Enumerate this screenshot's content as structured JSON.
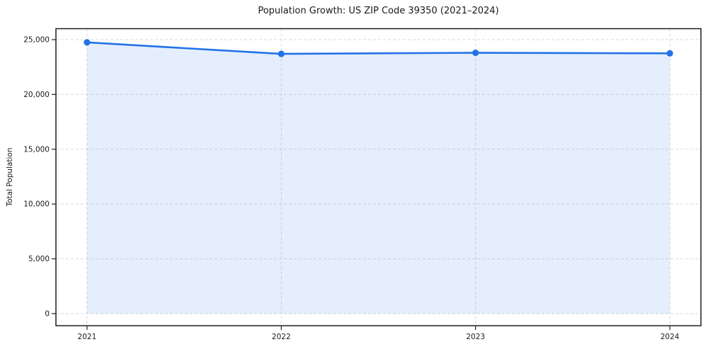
{
  "chart_data": {
    "type": "line",
    "title": "Population Growth: US ZIP Code 39350 (2021–2024)",
    "xlabel": "",
    "ylabel": "Total Population",
    "categories": [
      "2021",
      "2022",
      "2023",
      "2024"
    ],
    "series": [
      {
        "name": "Total Population",
        "values": [
          24750,
          23700,
          23800,
          23750
        ]
      }
    ],
    "yticks": [
      0,
      5000,
      10000,
      15000,
      20000,
      25000
    ],
    "ytick_labels": [
      "0",
      "5,000",
      "10,000",
      "15,000",
      "20,000",
      "25,000"
    ],
    "ylim": [
      -1100,
      26000
    ],
    "xlim": [
      -0.16,
      3.16
    ],
    "grid": "dashed, horizontal and vertical",
    "legend": "none",
    "area_fill": true,
    "markers": "filled circles",
    "colors": {
      "line": "#2272e8",
      "fill": "rgba(34,114,232,0.12)",
      "grid": "#d9d9d9",
      "spine": "#1f1f1f",
      "text": "#1a1a1a",
      "background": "#ffffff"
    }
  }
}
